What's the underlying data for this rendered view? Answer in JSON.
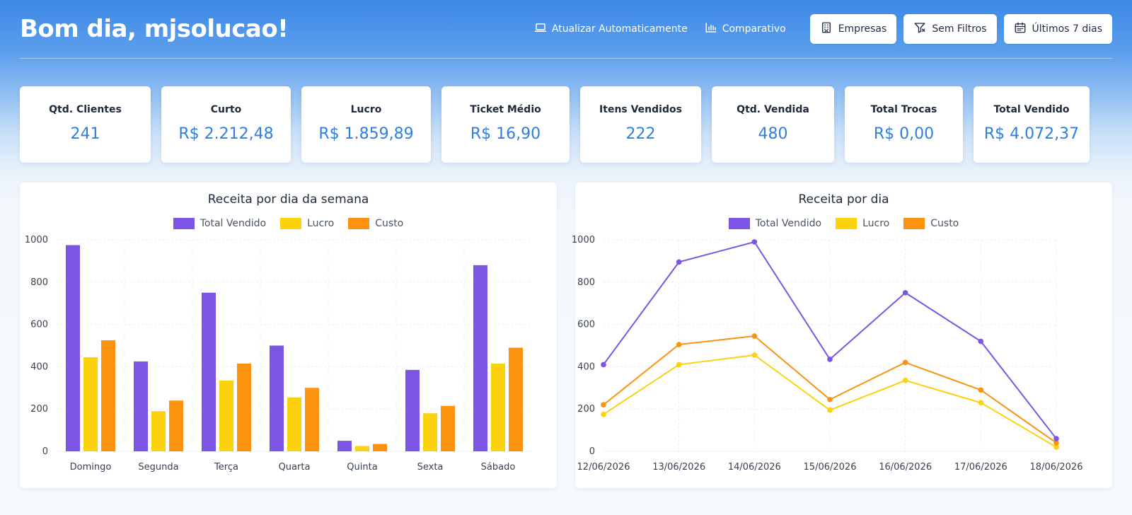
{
  "header": {
    "greeting": "Bom dia, mjsolucao!",
    "auto_update_label": "Atualizar Automaticamente",
    "auto_update_icon": "laptop-icon",
    "compare_label": "Comparativo",
    "compare_icon": "bar-chart-icon",
    "companies_label": "Empresas",
    "companies_icon": "building-icon",
    "filters_label": "Sem Filtros",
    "filters_icon": "filter-icon",
    "period_label": "Últimos 7 dias",
    "period_icon": "calendar-icon"
  },
  "kpis": [
    {
      "label": "Qtd. Clientes",
      "value": "241"
    },
    {
      "label": "Curto",
      "value": "R$ 2.212,48"
    },
    {
      "label": "Lucro",
      "value": "R$ 1.859,89"
    },
    {
      "label": "Ticket Médio",
      "value": "R$ 16,90"
    },
    {
      "label": "Itens Vendidos",
      "value": "222"
    },
    {
      "label": "Qtd. Vendida",
      "value": "480"
    },
    {
      "label": "Total Trocas",
      "value": "R$ 0,00"
    },
    {
      "label": "Total Vendido",
      "value": "R$ 4.072,37"
    }
  ],
  "colors": {
    "total_vendido": "#7c55e4",
    "lucro": "#fcd20f",
    "custo": "#fb930f",
    "accent": "#2f7fe0"
  },
  "chart_data": [
    {
      "type": "bar",
      "title": "Receita por dia da semana",
      "categories": [
        "Domingo",
        "Segunda",
        "Terça",
        "Quarta",
        "Quinta",
        "Sexta",
        "Sábado"
      ],
      "series": [
        {
          "name": "Total Vendido",
          "values": [
            975,
            425,
            750,
            500,
            50,
            385,
            880
          ]
        },
        {
          "name": "Lucro",
          "values": [
            445,
            190,
            335,
            255,
            25,
            180,
            415
          ]
        },
        {
          "name": "Custo",
          "values": [
            525,
            240,
            415,
            300,
            35,
            215,
            490
          ]
        }
      ],
      "ylim": [
        0,
        1000
      ],
      "yticks": [
        0,
        200,
        400,
        600,
        800,
        1000
      ],
      "grid": true,
      "legend": "top-center"
    },
    {
      "type": "line",
      "title": "Receita por dia",
      "categories": [
        "12/06/2026",
        "13/06/2026",
        "14/06/2026",
        "15/06/2026",
        "16/06/2026",
        "17/06/2026",
        "18/06/2026"
      ],
      "series": [
        {
          "name": "Total Vendido",
          "values": [
            410,
            895,
            990,
            435,
            750,
            520,
            60
          ]
        },
        {
          "name": "Lucro",
          "values": [
            175,
            410,
            455,
            195,
            335,
            230,
            20
          ]
        },
        {
          "name": "Custo",
          "values": [
            220,
            505,
            545,
            245,
            420,
            290,
            40
          ]
        }
      ],
      "ylim": [
        0,
        1000
      ],
      "yticks": [
        0,
        200,
        400,
        600,
        800,
        1000
      ],
      "grid": true,
      "legend": "top-center"
    }
  ]
}
